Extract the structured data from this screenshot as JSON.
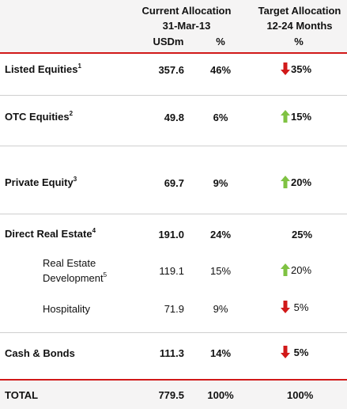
{
  "header": {
    "current_allocation": "Current Allocation",
    "current_date": "31-Mar-13",
    "usdm": "USDm",
    "pct": "%",
    "target_allocation": "Target Allocation",
    "target_period": "12-24 Months",
    "target_pct": "%"
  },
  "rows": [
    {
      "label": "Listed Equities",
      "sup": "1",
      "usdm": "357.6",
      "pct": "46%",
      "target": "35%",
      "direction": "down"
    },
    {
      "label": "OTC Equities",
      "sup": "2",
      "usdm": "49.8",
      "pct": "6%",
      "target": "15%",
      "direction": "up"
    },
    {
      "label": "Private Equity",
      "sup": "3",
      "usdm": "69.7",
      "pct": "9%",
      "target": "20%",
      "direction": "up"
    },
    {
      "label": "Direct Real Estate",
      "sup": "4",
      "usdm": "191.0",
      "pct": "24%",
      "target": "25%",
      "direction": "none"
    },
    {
      "label_line1": "Real Estate",
      "label_line2": "Development",
      "sup": "5",
      "usdm": "119.1",
      "pct": "15%",
      "target": "20%",
      "direction": "up"
    },
    {
      "label": "Hospitality",
      "usdm": "71.9",
      "pct": "9%",
      "target": "5%",
      "direction": "down"
    },
    {
      "label": "Cash & Bonds",
      "usdm": "111.3",
      "pct": "14%",
      "target": "5%",
      "direction": "down"
    }
  ],
  "total": {
    "label": "TOTAL",
    "usdm": "779.5",
    "pct": "100%",
    "target": "100%"
  },
  "colors": {
    "up_arrow": "#7fc242",
    "down_arrow": "#d11919",
    "rule": "#d11919"
  },
  "icons": {
    "up": "green-up-arrow-icon",
    "down": "red-down-arrow-icon"
  }
}
